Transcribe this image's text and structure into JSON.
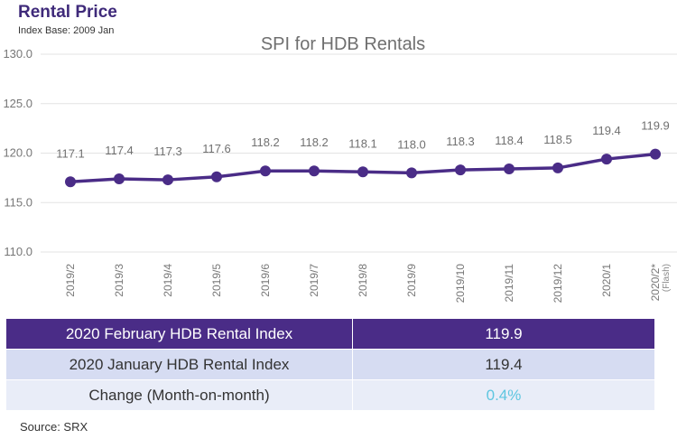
{
  "header": {
    "title": "Rental Price",
    "subtitle": "Index Base: 2009 Jan"
  },
  "chart_data": {
    "type": "line",
    "title": "SPI for HDB Rentals",
    "categories": [
      "2019/2",
      "2019/3",
      "2019/4",
      "2019/5",
      "2019/6",
      "2019/7",
      "2019/8",
      "2019/9",
      "2019/10",
      "2019/11",
      "2019/12",
      "2020/1",
      "2020/2*"
    ],
    "category_notes": {
      "2020/2*": "(Flash)"
    },
    "series": [
      {
        "name": "SPI for HDB Rentals",
        "values": [
          117.1,
          117.4,
          117.3,
          117.6,
          118.2,
          118.2,
          118.1,
          118.0,
          118.3,
          118.4,
          118.5,
          119.4,
          119.9
        ]
      }
    ],
    "data_labels": [
      "117.1",
      "117.4",
      "117.3",
      "117.6",
      "118.2",
      "118.2",
      "118.1",
      "118.0",
      "118.3",
      "118.4",
      "118.5",
      "119.4",
      "119.9"
    ],
    "ylim": [
      110.0,
      130.0
    ],
    "yticks": [
      "130.0",
      "125.0",
      "120.0",
      "115.0",
      "110.0"
    ],
    "ytick_values": [
      130,
      125,
      120,
      115,
      110
    ],
    "xlabel": "",
    "ylabel": "",
    "grid": true,
    "line_color": "#4a2c87"
  },
  "table": {
    "rows": [
      {
        "label": "2020 February HDB Rental Index",
        "value": "119.9"
      },
      {
        "label": "2020 January HDB Rental Index",
        "value": "119.4"
      },
      {
        "label": "Change (Month-on-month)",
        "value": "0.4%"
      }
    ]
  },
  "source": "Source: SRX"
}
